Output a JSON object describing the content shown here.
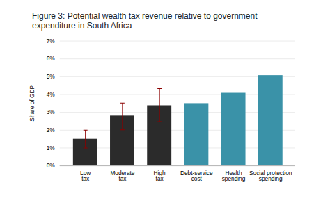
{
  "chart_data": {
    "type": "bar",
    "title": "Figure 3: Potential wealth tax revenue relative to government expenditure in South Africa",
    "ylabel": "Share of GDP",
    "categories": [
      "Low\ntax",
      "Moderate\ntax",
      "High\ntax",
      "Debt-service\ncost",
      "Health\nspending",
      "Social protection\nspending"
    ],
    "values": [
      1.5,
      2.8,
      3.38,
      3.5,
      4.08,
      5.07
    ],
    "colors": [
      "#2b2b2b",
      "#2b2b2b",
      "#2b2b2b",
      "#3a92a8",
      "#3a92a8",
      "#3a92a8"
    ],
    "error_lower": [
      0.5,
      0.78,
      0.9,
      null,
      null,
      null
    ],
    "error_upper": [
      0.5,
      0.72,
      0.95,
      null,
      null,
      null
    ],
    "error_color": "#8b0000",
    "ylim": [
      0,
      7
    ],
    "yticks": [
      {
        "value": 0,
        "label": "0%"
      },
      {
        "value": 1,
        "label": "1%"
      },
      {
        "value": 2,
        "label": "2%"
      },
      {
        "value": 3,
        "label": "3%"
      },
      {
        "value": 4,
        "label": "4%"
      },
      {
        "value": 5,
        "label": "5%"
      },
      {
        "value": 6,
        "label": "6%"
      },
      {
        "value": 7,
        "label": "7%"
      }
    ],
    "grid": true
  }
}
